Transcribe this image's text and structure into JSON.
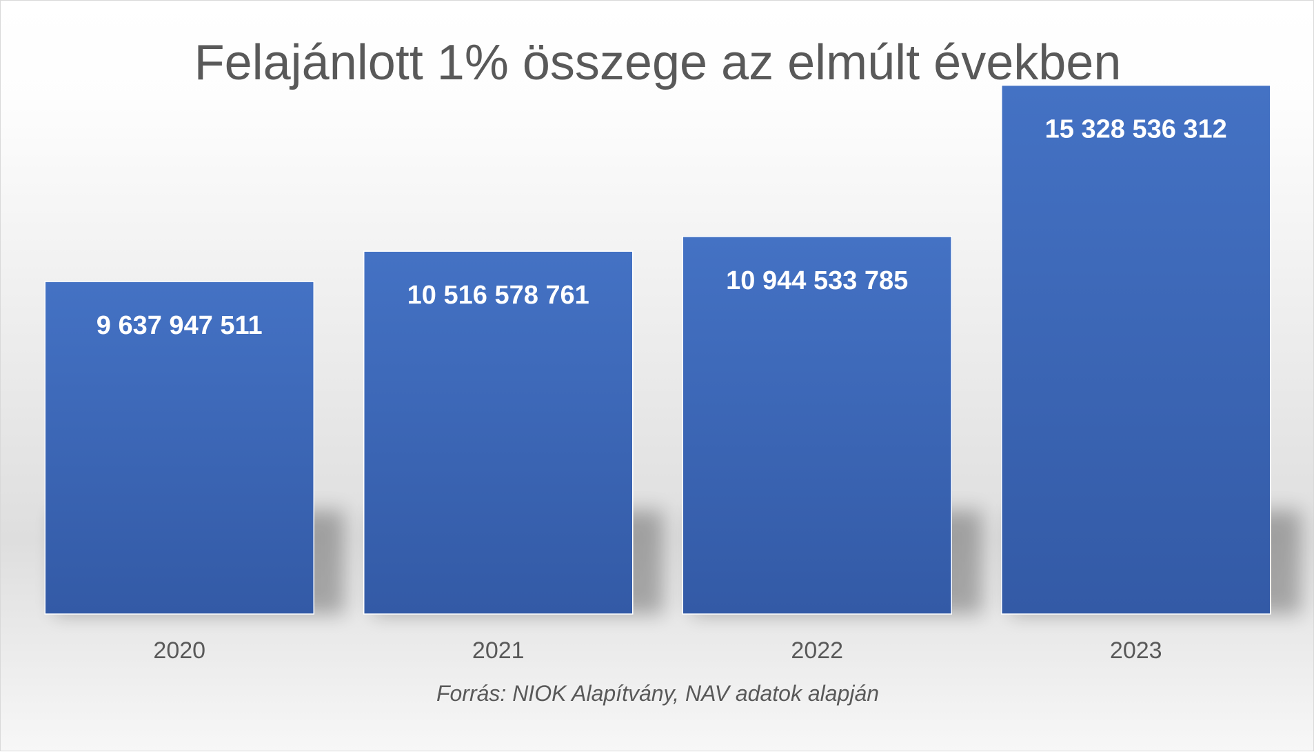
{
  "chart_data": {
    "type": "bar",
    "title": "Felajánlott 1% összege az elmúlt években",
    "categories": [
      "2020",
      "2021",
      "2022",
      "2023"
    ],
    "values": [
      9637947511,
      10516578761,
      10944533785,
      15328536312
    ],
    "data_labels": [
      "9 637 947 511",
      "10 516 578 761",
      "10 944 533 785",
      "15 328 536 312"
    ],
    "xlabel": "",
    "ylabel": "",
    "grid": false,
    "legend": "none",
    "bar_color": "#4472c4",
    "bar_color_dark": "#335aa6",
    "label_color": "#ffffff",
    "tick_color": "#595959"
  },
  "source_note": "Forrás: NIOK Alapítvány, NAV adatok alapján"
}
